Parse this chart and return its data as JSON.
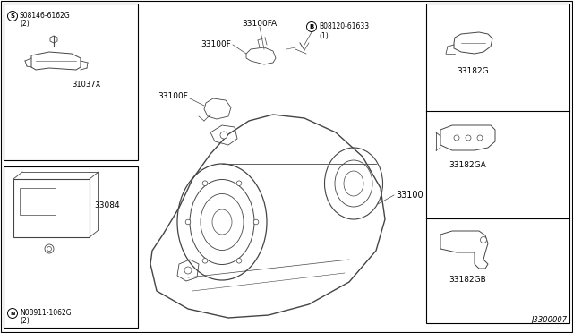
{
  "bg_color": "#ffffff",
  "border_color": "#000000",
  "line_color": "#444444",
  "fig_width": 6.4,
  "fig_height": 3.72,
  "diagram_ref": "J3300007",
  "labels": {
    "top_left_part1_code": "S08146-6162G",
    "top_left_part1_qty": "(2)",
    "top_left_part1_name": "31037X",
    "top_left_part2_code": "N08911-1062G",
    "top_left_part2_qty": "(2)",
    "top_left_part2_name": "33084",
    "center_top_label1": "33100FA",
    "center_top_label2": "33100F",
    "center_top_bolt_code": "B08120-61633",
    "center_top_bolt_qty": "(1)",
    "center_left_label": "33100F",
    "center_main_label": "33100",
    "right_label1": "33182G",
    "right_label2": "33182GA",
    "right_label3": "33182GB"
  }
}
